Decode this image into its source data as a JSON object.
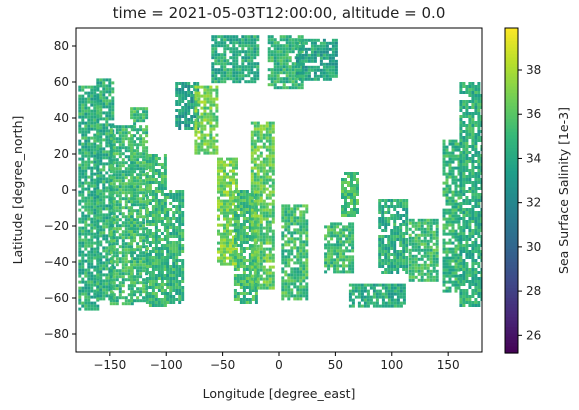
{
  "chart_data": {
    "type": "heatmap",
    "title": "time = 2021-05-03T12:00:00, altitude = 0.0",
    "xlabel": "Longitude [degree_east]",
    "ylabel": "Latitude [degree_north]",
    "colorbar_label": "Sea Surface Salinity [1e-3]",
    "colormap": "viridis",
    "xlim": [
      -180,
      180
    ],
    "ylim": [
      -90,
      90
    ],
    "clim": [
      25.2,
      39.9
    ],
    "xticks": [
      {
        "value": -150,
        "label": "−150"
      },
      {
        "value": -100,
        "label": "−100"
      },
      {
        "value": -50,
        "label": "−50"
      },
      {
        "value": 0,
        "label": "0"
      },
      {
        "value": 50,
        "label": "50"
      },
      {
        "value": 100,
        "label": "100"
      },
      {
        "value": 150,
        "label": "150"
      }
    ],
    "yticks": [
      {
        "value": 80,
        "label": "80"
      },
      {
        "value": 60,
        "label": "60"
      },
      {
        "value": 40,
        "label": "40"
      },
      {
        "value": 20,
        "label": "20"
      },
      {
        "value": 0,
        "label": "0"
      },
      {
        "value": -20,
        "label": "−20"
      },
      {
        "value": -40,
        "label": "−40"
      },
      {
        "value": -60,
        "label": "−60"
      },
      {
        "value": -80,
        "label": "−80"
      }
    ],
    "cbar_ticks": [
      {
        "value": 26,
        "label": "26"
      },
      {
        "value": 28,
        "label": "28"
      },
      {
        "value": 30,
        "label": "30"
      },
      {
        "value": 32,
        "label": "32"
      },
      {
        "value": 34,
        "label": "34"
      },
      {
        "value": 36,
        "label": "36"
      },
      {
        "value": 38,
        "label": "38"
      }
    ],
    "coverage_regions": [
      {
        "lon": [
          -178,
          -160
        ],
        "lat": [
          -66,
          58
        ],
        "mean": 34.5
      },
      {
        "lon": [
          -162,
          -148
        ],
        "lat": [
          -60,
          62
        ],
        "mean": 34.6
      },
      {
        "lon": [
          -150,
          -130
        ],
        "lat": [
          -64,
          36
        ],
        "mean": 35.0
      },
      {
        "lon": [
          -132,
          -118
        ],
        "lat": [
          -62,
          46
        ],
        "mean": 35.1
      },
      {
        "lon": [
          -118,
          -100
        ],
        "lat": [
          -64,
          20
        ],
        "mean": 35.0
      },
      {
        "lon": [
          -100,
          -85
        ],
        "lat": [
          -62,
          0
        ],
        "mean": 34.8
      },
      {
        "lon": [
          -92,
          -72
        ],
        "lat": [
          34,
          60
        ],
        "mean": 33.5
      },
      {
        "lon": [
          -75,
          -55
        ],
        "lat": [
          20,
          58
        ],
        "mean": 36.6
      },
      {
        "lon": [
          -55,
          -38
        ],
        "lat": [
          -42,
          18
        ],
        "mean": 36.8
      },
      {
        "lon": [
          -40,
          -20
        ],
        "lat": [
          -62,
          0
        ],
        "mean": 35.2
      },
      {
        "lon": [
          -25,
          -5
        ],
        "lat": [
          -55,
          38
        ],
        "mean": 36.2
      },
      {
        "lon": [
          -60,
          -20
        ],
        "lat": [
          60,
          86
        ],
        "mean": 34.3
      },
      {
        "lon": [
          -10,
          20
        ],
        "lat": [
          56,
          86
        ],
        "mean": 34.8
      },
      {
        "lon": [
          15,
          50
        ],
        "lat": [
          62,
          84
        ],
        "mean": 33.8
      },
      {
        "lon": [
          2,
          25
        ],
        "lat": [
          -60,
          -8
        ],
        "mean": 35.3
      },
      {
        "lon": [
          40,
          65
        ],
        "lat": [
          -46,
          -18
        ],
        "mean": 35.2
      },
      {
        "lon": [
          55,
          70
        ],
        "lat": [
          -15,
          10
        ],
        "mean": 35.3
      },
      {
        "lon": [
          62,
          110
        ],
        "lat": [
          -64,
          -52
        ],
        "mean": 34.3
      },
      {
        "lon": [
          88,
          112
        ],
        "lat": [
          -46,
          -5
        ],
        "mean": 34.4
      },
      {
        "lon": [
          115,
          140
        ],
        "lat": [
          -50,
          -16
        ],
        "mean": 35.3
      },
      {
        "lon": [
          145,
          160
        ],
        "lat": [
          -56,
          28
        ],
        "mean": 34.9
      },
      {
        "lon": [
          160,
          180
        ],
        "lat": [
          -64,
          60
        ],
        "mean": 34.5
      }
    ]
  }
}
